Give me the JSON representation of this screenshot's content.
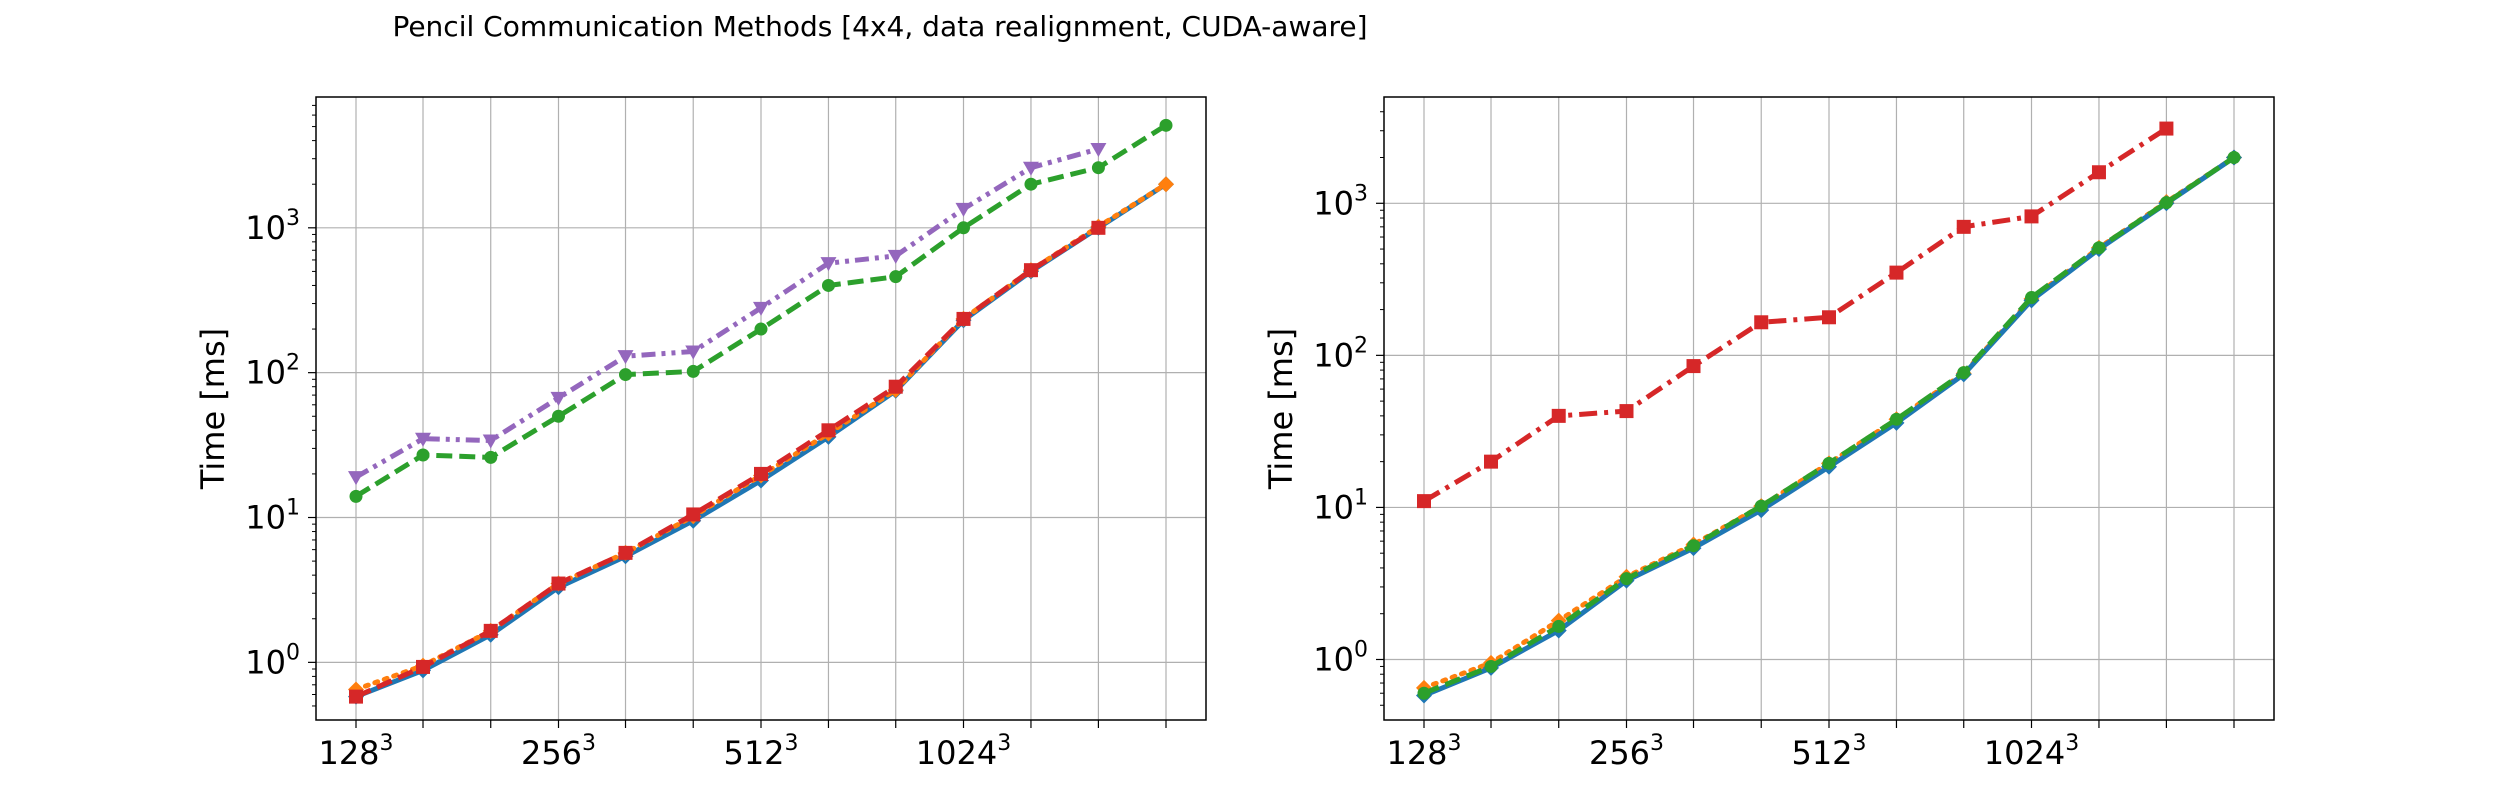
{
  "title": "Pencil Communication Methods [4x4, data realignment, CUDA-aware]",
  "chart_data": [
    {
      "type": "line",
      "ylabel": "Time [ms]",
      "yscale": "log",
      "ylim": [
        0.4,
        8000
      ],
      "grid": true,
      "x": [
        128,
        161,
        203,
        256,
        322,
        406,
        512,
        645,
        812,
        1024,
        1290,
        1625,
        2048
      ],
      "xticks": [
        {
          "value": 128,
          "base": "128",
          "exp": "3"
        },
        {
          "value": 256,
          "base": "256",
          "exp": "3"
        },
        {
          "value": 512,
          "base": "512",
          "exp": "3"
        },
        {
          "value": 1024,
          "base": "1024",
          "exp": "3"
        }
      ],
      "yticks": [
        {
          "value": 1,
          "base": "10",
          "exp": "0"
        },
        {
          "value": 10,
          "base": "10",
          "exp": "1"
        },
        {
          "value": 100,
          "base": "10",
          "exp": "2"
        },
        {
          "value": 1000,
          "base": "10",
          "exp": "3"
        }
      ],
      "series": [
        {
          "color": "#1f77b4",
          "dash": "solid",
          "marker": "diamond",
          "values": [
            0.58,
            0.88,
            1.55,
            3.3,
            5.4,
            9.5,
            18,
            36,
            75,
            230,
            500,
            1000,
            2000
          ]
        },
        {
          "color": "#ff7f0e",
          "dash": "dotted",
          "marker": "diamond",
          "values": [
            0.65,
            0.95,
            1.65,
            3.5,
            5.7,
            10.2,
            19.5,
            38,
            76,
            235,
            510,
            1020,
            2000
          ]
        },
        {
          "color": "#2ca02c",
          "dash": "dashed",
          "marker": "circle",
          "values": [
            14,
            27,
            26,
            50,
            97,
            102,
            200,
            400,
            460,
            1000,
            2000,
            2600,
            5100
          ]
        },
        {
          "color": "#d62728",
          "dash": "dashed",
          "marker": "square",
          "values": [
            0.58,
            0.93,
            1.65,
            3.5,
            5.7,
            10.5,
            20,
            40,
            80,
            235,
            510,
            1000,
            null
          ]
        },
        {
          "color": "#9467bd",
          "dash": "dashdotdot",
          "marker": "triangle-down",
          "values": [
            19,
            35,
            34,
            67,
            130,
            140,
            280,
            570,
            640,
            1350,
            2600,
            3500,
            null
          ]
        }
      ]
    },
    {
      "type": "line",
      "ylabel": "Time [ms]",
      "yscale": "log",
      "ylim": [
        0.4,
        5000
      ],
      "grid": true,
      "x": [
        128,
        161,
        203,
        256,
        322,
        406,
        512,
        645,
        812,
        1024,
        1290,
        1625,
        2048
      ],
      "xticks": [
        {
          "value": 128,
          "base": "128",
          "exp": "3"
        },
        {
          "value": 256,
          "base": "256",
          "exp": "3"
        },
        {
          "value": 512,
          "base": "512",
          "exp": "3"
        },
        {
          "value": 1024,
          "base": "1024",
          "exp": "3"
        }
      ],
      "yticks": [
        {
          "value": 1,
          "base": "10",
          "exp": "0"
        },
        {
          "value": 10,
          "base": "10",
          "exp": "1"
        },
        {
          "value": 100,
          "base": "10",
          "exp": "2"
        },
        {
          "value": 1000,
          "base": "10",
          "exp": "3"
        }
      ],
      "series": [
        {
          "color": "#ff7f0e",
          "dash": "dotted",
          "marker": "diamond",
          "values": [
            0.65,
            0.95,
            1.8,
            3.5,
            5.7,
            10.2,
            19.5,
            38,
            76,
            235,
            510,
            1020,
            2000
          ]
        },
        {
          "color": "#1f77b4",
          "dash": "solid",
          "marker": "diamond",
          "values": [
            0.58,
            0.88,
            1.55,
            3.3,
            5.4,
            9.6,
            18.5,
            36,
            75,
            230,
            500,
            1000,
            2000
          ]
        },
        {
          "color": "#2ca02c",
          "dash": "dashed",
          "marker": "circle",
          "values": [
            0.6,
            0.9,
            1.65,
            3.4,
            5.6,
            10.2,
            19.5,
            38,
            77,
            240,
            510,
            1010,
            2000
          ]
        },
        {
          "color": "#d62728",
          "dash": "dashdot",
          "marker": "square",
          "values": [
            11,
            20,
            40,
            43,
            85,
            165,
            178,
            350,
            700,
            820,
            1600,
            3100,
            null
          ]
        }
      ]
    }
  ]
}
